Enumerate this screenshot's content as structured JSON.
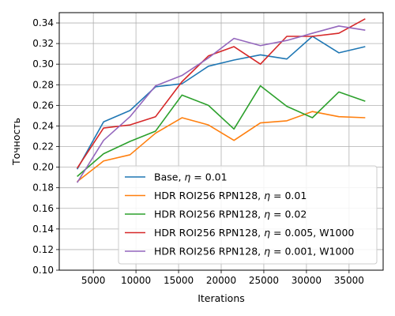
{
  "chart_data": {
    "type": "line",
    "title": "",
    "xlabel": "Iterations",
    "ylabel": "Точность",
    "xlim": [
      1000,
      39000
    ],
    "ylim": [
      0.1,
      0.35
    ],
    "xticks": [
      5000,
      10000,
      15000,
      20000,
      25000,
      30000,
      35000
    ],
    "xtick_labels": [
      "5000",
      "10000",
      "15000",
      "20000",
      "25000",
      "30000",
      "35000"
    ],
    "yticks": [
      0.1,
      0.12,
      0.14,
      0.16,
      0.18,
      0.2,
      0.22,
      0.24,
      0.26,
      0.28,
      0.3,
      0.32,
      0.34
    ],
    "ytick_labels": [
      "0.10",
      "0.12",
      "0.14",
      "0.16",
      "0.18",
      "0.20",
      "0.22",
      "0.24",
      "0.26",
      "0.28",
      "0.30",
      "0.32",
      "0.34"
    ],
    "grid": true,
    "legend_position": "lower-right",
    "x": [
      3100,
      6200,
      9300,
      12300,
      15400,
      18500,
      21500,
      24600,
      27700,
      30700,
      33800,
      36900
    ],
    "series": [
      {
        "name_prefix": "Base, ",
        "name_math": "η",
        "name_suffix": " = 0.01",
        "color": "#1f77b4",
        "values": [
          0.198,
          0.244,
          0.255,
          0.278,
          0.281,
          0.298,
          0.304,
          0.309,
          0.305,
          0.327,
          0.311,
          0.317
        ]
      },
      {
        "name_prefix": "HDR ROI256 RPN128, ",
        "name_math": "η",
        "name_suffix": " = 0.01",
        "color": "#ff7f0e",
        "values": [
          0.186,
          0.206,
          0.212,
          0.233,
          0.248,
          0.241,
          0.226,
          0.243,
          0.245,
          0.254,
          0.249,
          0.248
        ]
      },
      {
        "name_prefix": "HDR ROI256 RPN128, ",
        "name_math": "η",
        "name_suffix": " = 0.02",
        "color": "#2ca02c",
        "values": [
          0.191,
          0.213,
          0.225,
          0.235,
          0.27,
          0.26,
          0.237,
          0.279,
          0.259,
          0.248,
          0.273,
          0.264
        ]
      },
      {
        "name_prefix": "HDR ROI256 RPN128, ",
        "name_math": "η",
        "name_suffix": " = 0.005, W1000",
        "color": "#d62728",
        "values": [
          0.199,
          0.238,
          0.241,
          0.249,
          0.283,
          0.308,
          0.317,
          0.3,
          0.327,
          0.327,
          0.33,
          0.344
        ]
      },
      {
        "name_prefix": "HDR ROI256 RPN128, ",
        "name_math": "η",
        "name_suffix": " = 0.001, W1000",
        "color": "#9467bd",
        "values": [
          0.185,
          0.226,
          0.249,
          0.279,
          0.289,
          0.306,
          0.325,
          0.318,
          0.323,
          0.33,
          0.337,
          0.333
        ]
      }
    ]
  }
}
